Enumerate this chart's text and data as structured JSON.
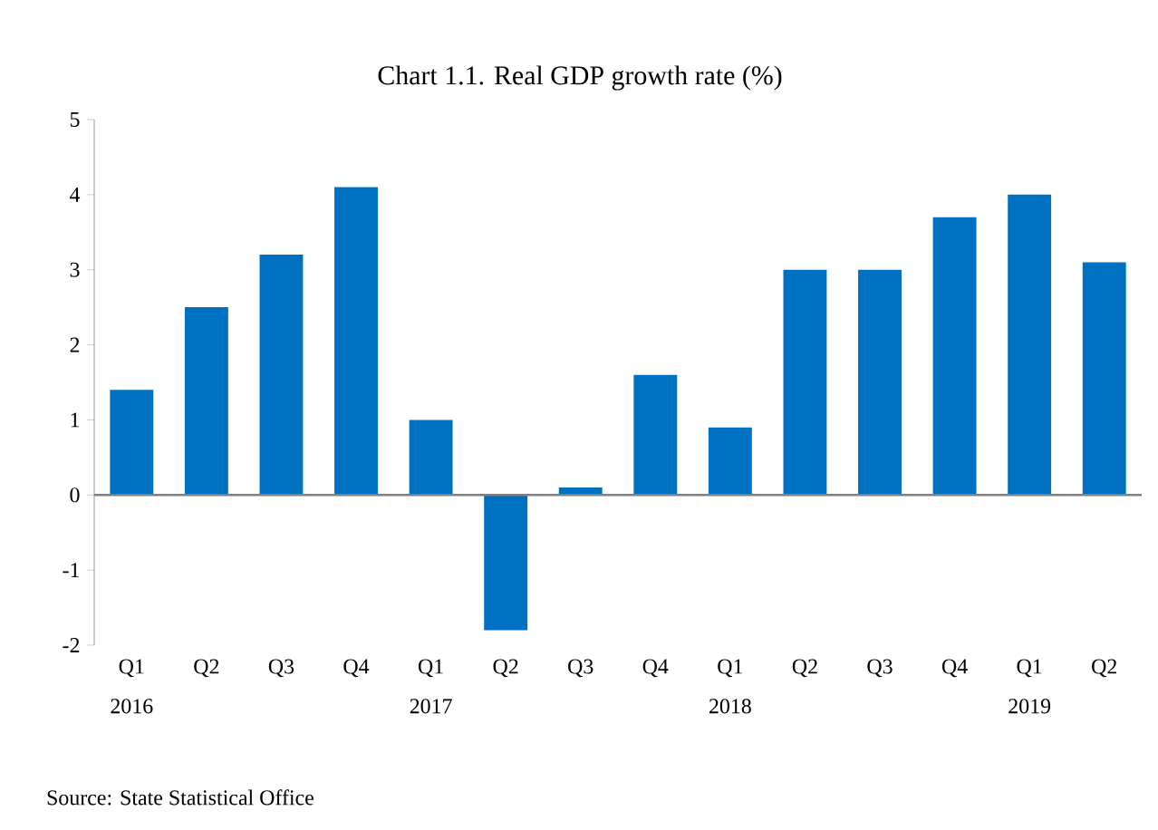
{
  "chart_data": {
    "type": "bar",
    "title": "Chart 1.1. Real GDP growth rate (%)",
    "categories": [
      "Q1 2016",
      "Q2",
      "Q3",
      "Q4",
      "Q1 2017",
      "Q2",
      "Q3",
      "Q4",
      "Q1 2018",
      "Q2",
      "Q3",
      "Q4",
      "Q1 2019",
      "Q2"
    ],
    "values": [
      1.4,
      2.5,
      3.2,
      4.1,
      1.0,
      -1.8,
      0.1,
      1.6,
      0.9,
      3.0,
      3.0,
      3.7,
      4.0,
      3.1
    ],
    "color": "#0070c0",
    "ylim": [
      -2,
      5
    ],
    "yticks": [
      -2,
      -1,
      0,
      1,
      2,
      3,
      4,
      5
    ],
    "annotations": [
      "Source: State Statistical Office"
    ]
  }
}
